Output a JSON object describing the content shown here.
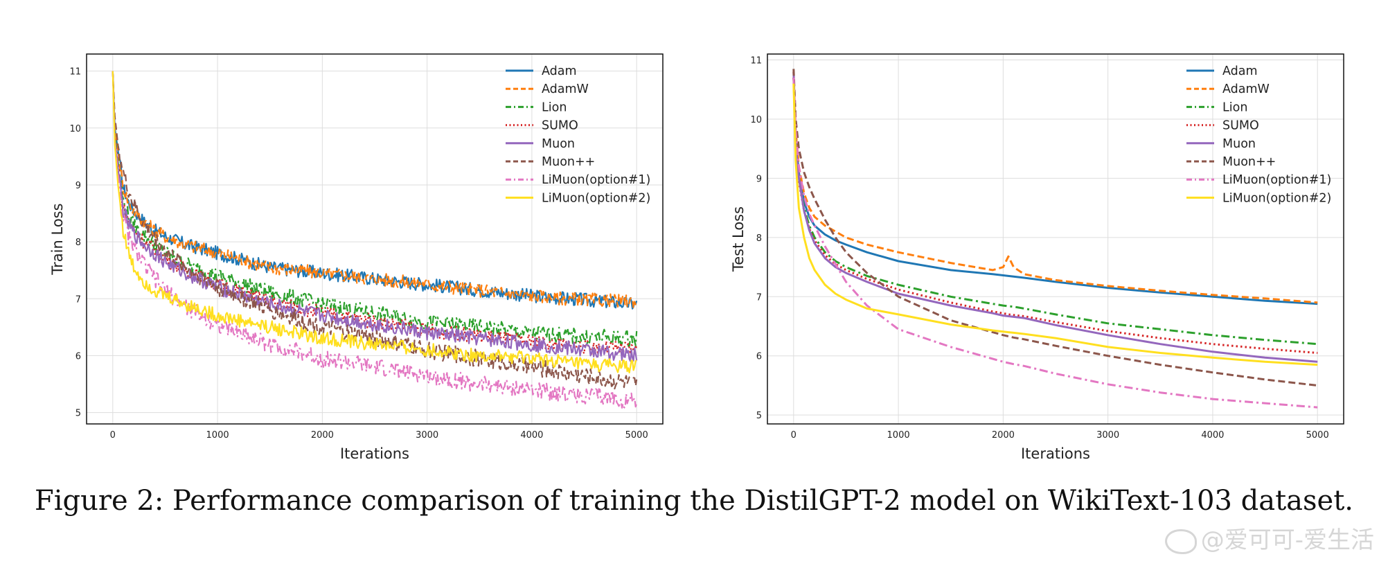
{
  "caption": "Figure 2: Performance comparison of training the DistilGPT-2 model on WikiText-103 dataset.",
  "watermark": "@爱可可-爱生活",
  "colors": {
    "Adam": "#1f77b4",
    "AdamW": "#ff7f0e",
    "Lion": "#2ca02c",
    "SUMO": "#d62728",
    "Muon": "#9467bd",
    "Muon++": "#8c564b",
    "LiMuon(option#1)": "#e377c2",
    "LiMuon(option#2)": "#ffdf1f"
  },
  "chart_data": [
    {
      "type": "line",
      "xlabel": "Iterations",
      "ylabel": "Train Loss",
      "xlim": [
        -250,
        5250
      ],
      "ylim": [
        4.8,
        11.3
      ],
      "xticks": [
        0,
        1000,
        2000,
        3000,
        4000,
        5000
      ],
      "yticks": [
        5,
        6,
        7,
        8,
        9,
        10,
        11
      ],
      "grid": true,
      "legend": "top-right",
      "x": [
        0,
        20,
        50,
        100,
        150,
        200,
        300,
        400,
        500,
        700,
        1000,
        1500,
        2000,
        2500,
        3000,
        3500,
        4000,
        4500,
        5000
      ],
      "series": [
        {
          "name": "Adam",
          "style": "solid",
          "values": [
            11.0,
            10.0,
            9.6,
            8.95,
            8.7,
            8.55,
            8.35,
            8.2,
            8.1,
            7.95,
            7.8,
            7.55,
            7.45,
            7.35,
            7.25,
            7.15,
            7.05,
            6.98,
            6.9
          ]
        },
        {
          "name": "AdamW",
          "style": "dashed",
          "values": [
            11.0,
            10.0,
            9.6,
            8.95,
            8.7,
            8.55,
            8.35,
            8.2,
            8.1,
            7.95,
            7.8,
            7.55,
            7.45,
            7.35,
            7.25,
            7.15,
            7.05,
            6.98,
            6.95
          ]
        },
        {
          "name": "Lion",
          "style": "dashdot",
          "values": [
            11.0,
            9.9,
            9.4,
            8.7,
            8.45,
            8.3,
            8.1,
            7.95,
            7.8,
            7.6,
            7.4,
            7.1,
            6.9,
            6.75,
            6.6,
            6.5,
            6.4,
            6.33,
            6.3
          ]
        },
        {
          "name": "SUMO",
          "style": "dotted",
          "values": [
            11.0,
            9.85,
            9.35,
            8.6,
            8.35,
            8.2,
            8.0,
            7.85,
            7.7,
            7.5,
            7.25,
            6.95,
            6.75,
            6.6,
            6.45,
            6.35,
            6.25,
            6.15,
            6.1
          ]
        },
        {
          "name": "Muon",
          "style": "solid",
          "values": [
            11.0,
            9.8,
            9.3,
            8.55,
            8.3,
            8.15,
            7.95,
            7.8,
            7.65,
            7.45,
            7.2,
            6.9,
            6.7,
            6.55,
            6.4,
            6.3,
            6.2,
            6.1,
            6.0
          ]
        },
        {
          "name": "Muon++",
          "style": "dashed",
          "values": [
            11.0,
            10.2,
            9.7,
            9.2,
            8.9,
            8.65,
            8.3,
            8.05,
            7.85,
            7.55,
            7.2,
            6.8,
            6.5,
            6.3,
            6.1,
            5.95,
            5.8,
            5.65,
            5.5
          ]
        },
        {
          "name": "LiMuon(option#1)",
          "style": "dashdot",
          "values": [
            11.0,
            9.8,
            9.2,
            8.4,
            8.1,
            7.9,
            7.6,
            7.35,
            7.15,
            6.85,
            6.55,
            6.2,
            5.95,
            5.8,
            5.65,
            5.5,
            5.4,
            5.3,
            5.2
          ]
        },
        {
          "name": "LiMuon(option#2)",
          "style": "solid",
          "values": [
            11.0,
            9.7,
            9.0,
            8.2,
            7.8,
            7.55,
            7.3,
            7.15,
            7.05,
            6.9,
            6.7,
            6.5,
            6.3,
            6.2,
            6.1,
            6.0,
            5.95,
            5.85,
            5.8
          ]
        }
      ]
    },
    {
      "type": "line",
      "xlabel": "Iterations",
      "ylabel": "Test Loss",
      "xlim": [
        -250,
        5250
      ],
      "ylim": [
        4.85,
        11.1
      ],
      "xticks": [
        0,
        1000,
        2000,
        3000,
        4000,
        5000
      ],
      "yticks": [
        5,
        6,
        7,
        8,
        9,
        10,
        11
      ],
      "grid": true,
      "legend": "top-right",
      "x": [
        0,
        20,
        50,
        100,
        150,
        200,
        300,
        400,
        500,
        700,
        1000,
        1500,
        1900,
        2000,
        2050,
        2100,
        2200,
        2500,
        3000,
        3500,
        4000,
        4500,
        5000
      ],
      "series": [
        {
          "name": "Adam",
          "style": "solid",
          "values": [
            10.7,
            9.7,
            9.1,
            8.6,
            8.35,
            8.2,
            8.05,
            7.95,
            7.88,
            7.75,
            7.6,
            7.45,
            7.38,
            7.36,
            7.35,
            7.34,
            7.32,
            7.25,
            7.15,
            7.07,
            7.0,
            6.93,
            6.88
          ]
        },
        {
          "name": "AdamW",
          "style": "dashed",
          "values": [
            10.8,
            9.8,
            9.2,
            8.75,
            8.5,
            8.35,
            8.2,
            8.1,
            8.0,
            7.88,
            7.75,
            7.57,
            7.45,
            7.5,
            7.68,
            7.5,
            7.38,
            7.28,
            7.18,
            7.1,
            7.03,
            6.97,
            6.9
          ]
        },
        {
          "name": "Lion",
          "style": "dashdot",
          "values": [
            10.7,
            9.6,
            9.0,
            8.5,
            8.2,
            8.0,
            7.75,
            7.6,
            7.5,
            7.35,
            7.2,
            7.0,
            6.88,
            6.85,
            6.84,
            6.83,
            6.8,
            6.7,
            6.55,
            6.45,
            6.35,
            6.27,
            6.2
          ]
        },
        {
          "name": "SUMO",
          "style": "dotted",
          "values": [
            10.7,
            9.55,
            8.95,
            8.45,
            8.15,
            7.95,
            7.7,
            7.55,
            7.45,
            7.3,
            7.12,
            6.9,
            6.75,
            6.72,
            6.7,
            6.69,
            6.67,
            6.57,
            6.42,
            6.3,
            6.2,
            6.12,
            6.05
          ]
        },
        {
          "name": "Muon",
          "style": "solid",
          "values": [
            10.8,
            9.6,
            9.0,
            8.45,
            8.12,
            7.9,
            7.65,
            7.5,
            7.4,
            7.25,
            7.05,
            6.85,
            6.72,
            6.68,
            6.67,
            6.66,
            6.64,
            6.52,
            6.35,
            6.2,
            6.07,
            5.97,
            5.9
          ]
        },
        {
          "name": "Muon++",
          "style": "dashed",
          "values": [
            10.85,
            10.0,
            9.5,
            9.1,
            8.85,
            8.65,
            8.3,
            8.0,
            7.75,
            7.4,
            7.0,
            6.6,
            6.4,
            6.35,
            6.33,
            6.31,
            6.28,
            6.17,
            6.0,
            5.85,
            5.72,
            5.6,
            5.5
          ]
        },
        {
          "name": "LiMuon(option#1)",
          "style": "dashdot",
          "values": [
            10.7,
            9.8,
            9.2,
            8.7,
            8.4,
            8.2,
            7.85,
            7.55,
            7.25,
            6.85,
            6.45,
            6.15,
            5.95,
            5.9,
            5.88,
            5.86,
            5.83,
            5.7,
            5.52,
            5.38,
            5.27,
            5.2,
            5.13
          ]
        },
        {
          "name": "LiMuon(option#2)",
          "style": "solid",
          "values": [
            10.6,
            9.3,
            8.5,
            8.0,
            7.65,
            7.45,
            7.2,
            7.05,
            6.95,
            6.8,
            6.7,
            6.53,
            6.43,
            6.41,
            6.4,
            6.39,
            6.37,
            6.3,
            6.15,
            6.05,
            5.97,
            5.9,
            5.85
          ]
        }
      ]
    }
  ]
}
